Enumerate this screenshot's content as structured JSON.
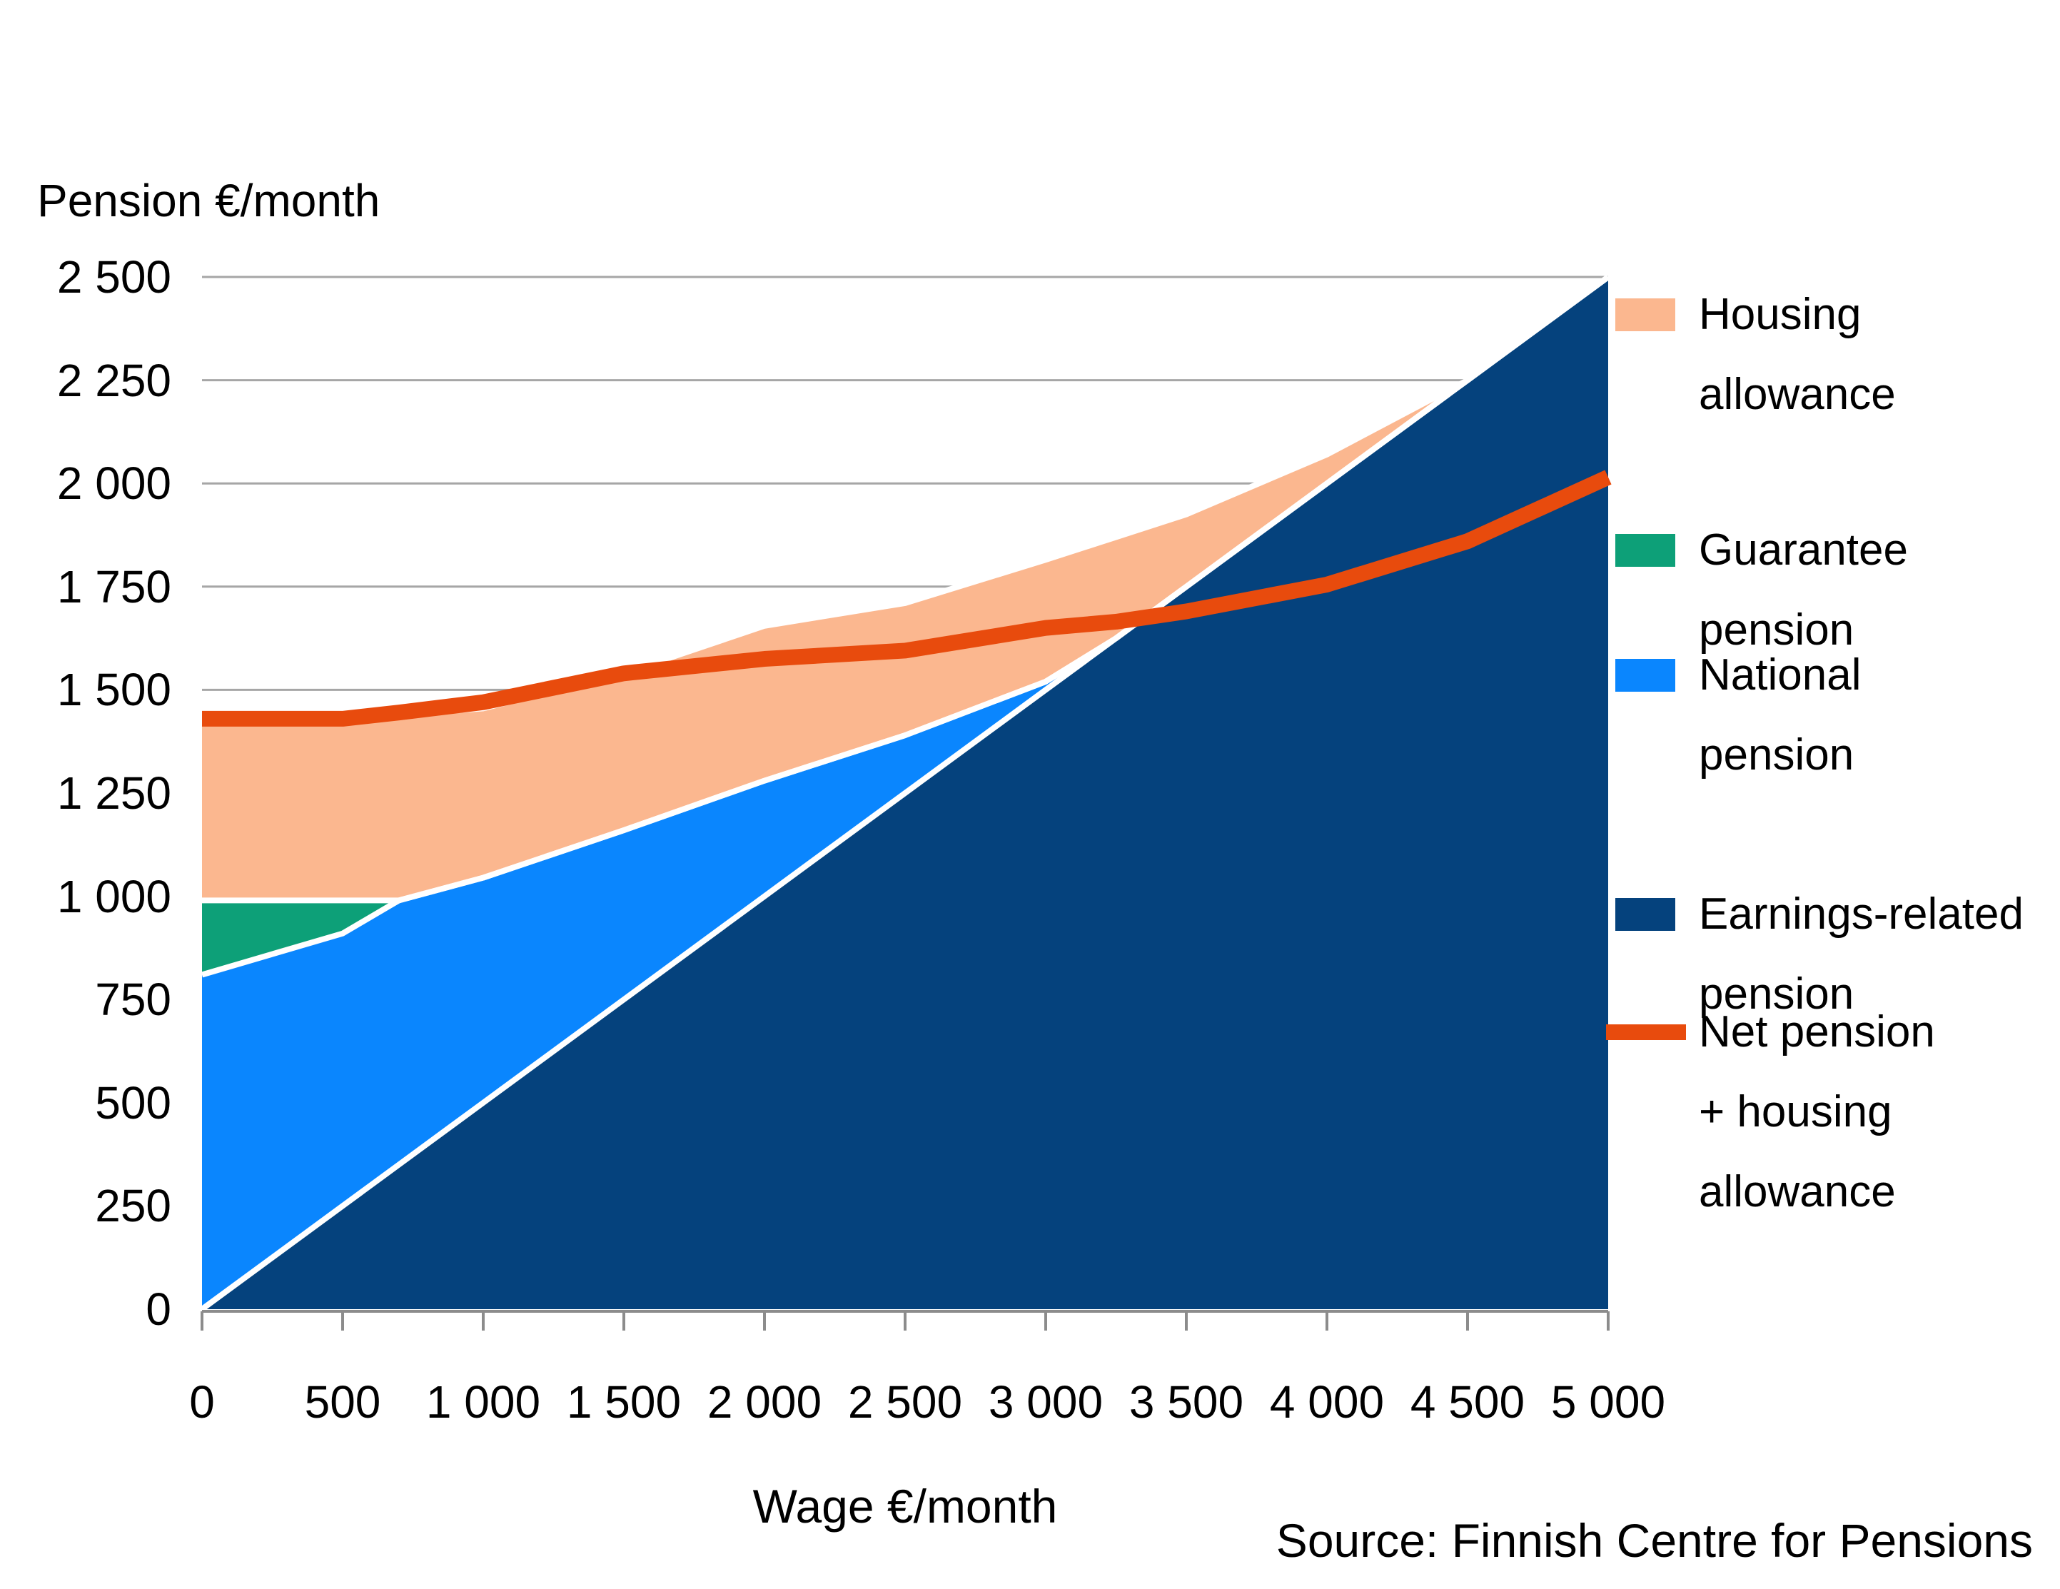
{
  "chart_data": {
    "type": "area",
    "title": "Pension €/month",
    "x_axis_title": "Wage €/month",
    "source_note": "Source: Finnish Centre for Pensions",
    "xlim": [
      0,
      5000
    ],
    "ylim": [
      0,
      2500
    ],
    "grid": "horizontal",
    "legend_position": "right",
    "x": [
      0,
      500,
      700,
      1000,
      1500,
      2000,
      2500,
      3000,
      3250,
      3500,
      4000,
      4500,
      5000
    ],
    "series": [
      {
        "name": "Earnings-related pension",
        "color": "#05427D",
        "values": [
          0,
          250,
          350,
          500,
          750,
          1000,
          1250,
          1500,
          1625,
          1750,
          2000,
          2250,
          2500
        ]
      },
      {
        "name": "National pension",
        "color": "#0A86FE",
        "values": [
          810,
          660,
          640,
          545,
          410,
          280,
          140,
          20,
          0,
          0,
          0,
          0,
          0
        ]
      },
      {
        "name": "Guarantee pension",
        "color": "#0DA078",
        "values": [
          180,
          80,
          0,
          0,
          0,
          0,
          0,
          0,
          0,
          0,
          0,
          0,
          0
        ]
      },
      {
        "name": "Housing allowance",
        "color": "#FBB78F",
        "values": [
          440,
          440,
          450,
          410,
          380,
          375,
          320,
          295,
          245,
          175,
          70,
          0,
          0
        ]
      }
    ],
    "net_line": {
      "name": "Net pension + housing allowance",
      "color": "#E84B0D",
      "values": [
        1430,
        1430,
        1445,
        1470,
        1540,
        1575,
        1595,
        1650,
        1665,
        1690,
        1755,
        1860,
        2015
      ]
    },
    "x_tick_values": [
      0,
      500,
      1000,
      1500,
      2000,
      2500,
      3000,
      3500,
      4000,
      4500,
      5000
    ],
    "x_tick_labels": [
      "0",
      "500",
      "1 000",
      "1 500",
      "2 000",
      "2 500",
      "3 000",
      "3 500",
      "4 000",
      "4 500",
      "5 000"
    ],
    "y_tick_values": [
      0,
      250,
      500,
      750,
      1000,
      1250,
      1500,
      1750,
      2000,
      2250,
      2500
    ],
    "y_tick_labels": [
      "0",
      "250",
      "500",
      "750",
      "1 000",
      "1 250",
      "1 500",
      "1 750",
      "2 000",
      "2 250",
      "2 500"
    ]
  },
  "legend": {
    "items": [
      {
        "label_lines": [
          "Housing",
          "allowance"
        ],
        "swatch": "box",
        "color": "#FBB78F"
      },
      {
        "label_lines": [
          "Guarantee",
          "pension"
        ],
        "swatch": "box",
        "color": "#0DA078"
      },
      {
        "label_lines": [
          "National",
          "pension"
        ],
        "swatch": "box",
        "color": "#0A86FE"
      },
      {
        "label_lines": [
          "Earnings-related",
          "pension"
        ],
        "swatch": "box",
        "color": "#05427D"
      },
      {
        "label_lines": [
          "Net pension",
          "+ housing",
          "allowance"
        ],
        "swatch": "line",
        "color": "#E84B0D"
      }
    ]
  },
  "colors": {
    "gridline": "#A6A6A6",
    "axis": "#8C8C8C",
    "boundary": "#FFFFFF",
    "background": "#FFFFFF",
    "text": "#000000"
  }
}
